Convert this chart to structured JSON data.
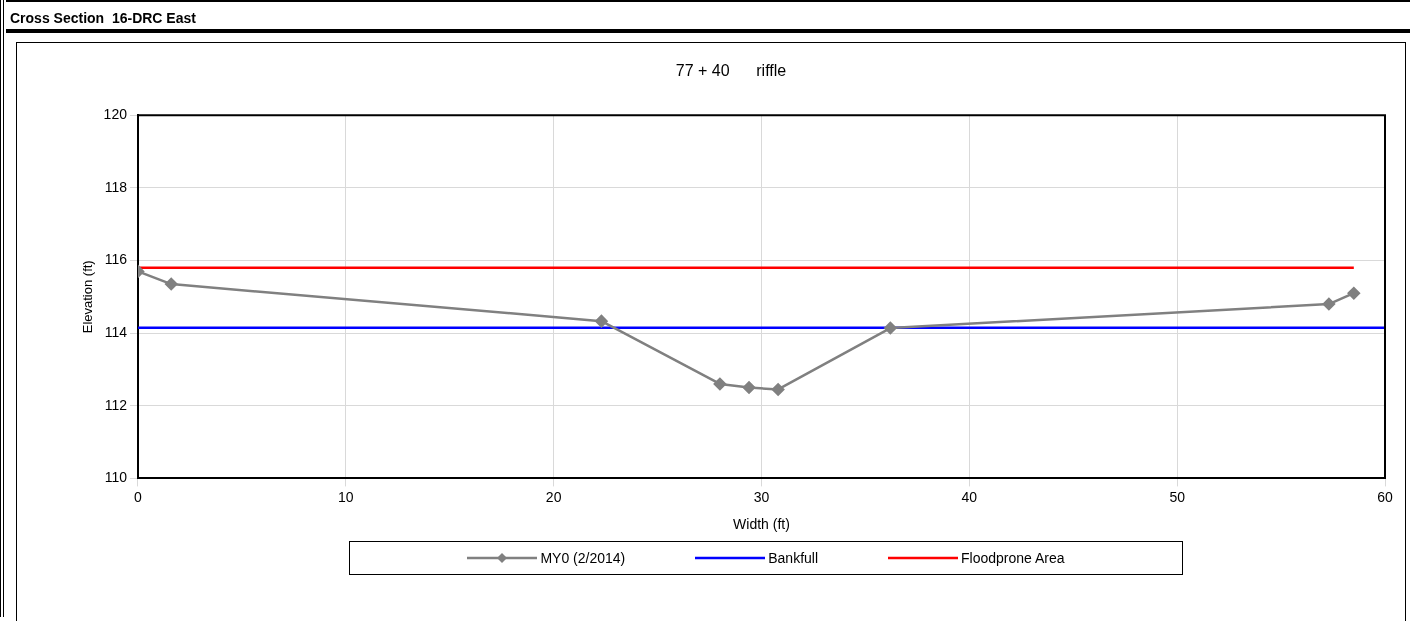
{
  "chart_data": {
    "type": "line",
    "title": "Cross Section  16-DRC East",
    "subtitle": "77 + 40      riffle",
    "xlabel": "Width (ft)",
    "ylabel": "Elevation (ft)",
    "xlim": [
      0,
      60
    ],
    "xticks": [
      0,
      10,
      20,
      30,
      40,
      50,
      60
    ],
    "ylim": [
      110,
      120
    ],
    "yticks": [
      110,
      112,
      114,
      116,
      118,
      120
    ],
    "grid": true,
    "legend": "bottom",
    "series": [
      {
        "name": "MY0 (2/2014)",
        "color": "#808080",
        "marker": "diamond",
        "x": [
          0,
          1.6,
          22.3,
          28.0,
          29.4,
          30.8,
          36.2,
          57.3,
          58.5
        ],
        "values": [
          115.7,
          115.35,
          114.33,
          112.6,
          112.5,
          112.45,
          114.14,
          114.8,
          115.1
        ]
      },
      {
        "name": "Bankfull",
        "color": "#0000ff",
        "marker": "none",
        "x": [
          0,
          60
        ],
        "values": [
          114.15,
          114.15
        ]
      },
      {
        "name": "Floodprone Area",
        "color": "#ff0000",
        "marker": "none",
        "x": [
          0,
          58.5
        ],
        "values": [
          115.8,
          115.8
        ]
      }
    ]
  }
}
